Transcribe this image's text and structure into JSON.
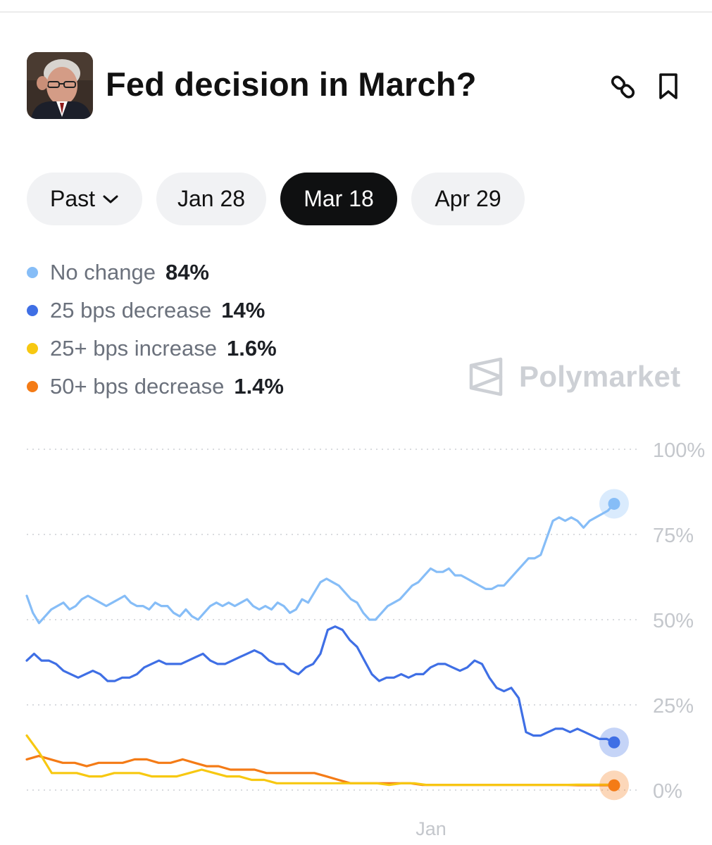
{
  "market": {
    "title": "Fed decision in March?"
  },
  "header_icons": [
    "link-icon",
    "bookmark-icon"
  ],
  "tabs": [
    {
      "label": "Past",
      "has_dropdown": true,
      "active": false
    },
    {
      "label": "Jan 28",
      "active": false
    },
    {
      "label": "Mar 18",
      "active": true
    },
    {
      "label": "Apr 29",
      "active": false
    }
  ],
  "legend": [
    {
      "name": "No change",
      "value": "84%",
      "color": "#86bdf7"
    },
    {
      "name": "25 bps decrease",
      "value": "14%",
      "color": "#3f6fe5"
    },
    {
      "name": "25+ bps increase",
      "value": "1.6%",
      "color": "#f7c811"
    },
    {
      "name": "50+ bps decrease",
      "value": "1.4%",
      "color": "#f47b16"
    }
  ],
  "brand": {
    "name": "Polymarket"
  },
  "chart_data": {
    "type": "line",
    "x_tick_labels": [
      "Jan"
    ],
    "y_tick_labels": [
      "100%",
      "75%",
      "50%",
      "25%",
      "0%"
    ],
    "ylim": [
      0,
      100
    ],
    "grid": true,
    "series": [
      {
        "name": "No change",
        "color": "#86bdf7",
        "final": 84,
        "values": [
          57,
          52,
          49,
          51,
          53,
          54,
          55,
          53,
          54,
          56,
          57,
          56,
          55,
          54,
          55,
          56,
          57,
          55,
          54,
          54,
          53,
          55,
          54,
          54,
          52,
          51,
          53,
          51,
          50,
          52,
          54,
          55,
          54,
          55,
          54,
          55,
          56,
          54,
          53,
          54,
          53,
          55,
          54,
          52,
          53,
          56,
          55,
          58,
          61,
          62,
          61,
          60,
          58,
          56,
          55,
          52,
          50,
          50,
          52,
          54,
          55,
          56,
          58,
          60,
          61,
          63,
          65,
          64,
          64,
          65,
          63,
          63,
          62,
          61,
          60,
          59,
          59,
          60,
          60,
          62,
          64,
          66,
          68,
          68,
          69,
          74,
          79,
          80,
          79,
          80,
          79,
          77,
          79,
          80,
          81,
          82,
          84
        ]
      },
      {
        "name": "25 bps decrease",
        "color": "#3f6fe5",
        "final": 14,
        "values": [
          38,
          40,
          38,
          38,
          37,
          35,
          34,
          33,
          34,
          35,
          34,
          32,
          32,
          33,
          33,
          34,
          36,
          37,
          38,
          37,
          37,
          37,
          38,
          39,
          40,
          38,
          37,
          37,
          38,
          39,
          40,
          41,
          40,
          38,
          37,
          37,
          35,
          34,
          36,
          37,
          40,
          47,
          48,
          47,
          44,
          42,
          38,
          34,
          32,
          33,
          33,
          34,
          33,
          34,
          34,
          36,
          37,
          37,
          36,
          35,
          36,
          38,
          37,
          33,
          30,
          29,
          30,
          27,
          17,
          16,
          16,
          17,
          18,
          18,
          17,
          18,
          17,
          16,
          15,
          15,
          14
        ]
      },
      {
        "name": "25+ bps increase",
        "color": "#f7c811",
        "final": 1.6,
        "values": [
          16,
          11,
          5,
          5,
          5,
          4,
          4,
          5,
          5,
          5,
          4,
          4,
          4,
          5,
          6,
          5,
          4,
          4,
          3,
          3,
          2,
          2,
          2,
          2,
          2,
          2,
          2,
          2,
          2,
          1.5,
          2,
          2,
          1.5,
          1.5,
          1.5,
          1.5,
          1.5,
          1.5,
          1.5,
          1.5,
          1.5,
          1.5,
          1.5,
          1.5,
          1.6,
          1.6,
          1.6,
          1.6
        ]
      },
      {
        "name": "50+ bps decrease",
        "color": "#f47b16",
        "final": 1.4,
        "values": [
          9,
          10,
          9,
          8,
          8,
          7,
          8,
          8,
          8,
          9,
          9,
          8,
          8,
          9,
          8,
          7,
          7,
          6,
          6,
          6,
          5,
          5,
          5,
          5,
          5,
          4,
          3,
          2,
          2,
          2,
          2,
          2,
          2,
          1.5,
          1.5,
          1.5,
          1.5,
          1.5,
          1.5,
          1.5,
          1.5,
          1.5,
          1.5,
          1.5,
          1.5,
          1.5,
          1.4,
          1.4,
          1.4,
          1.4
        ]
      }
    ]
  }
}
